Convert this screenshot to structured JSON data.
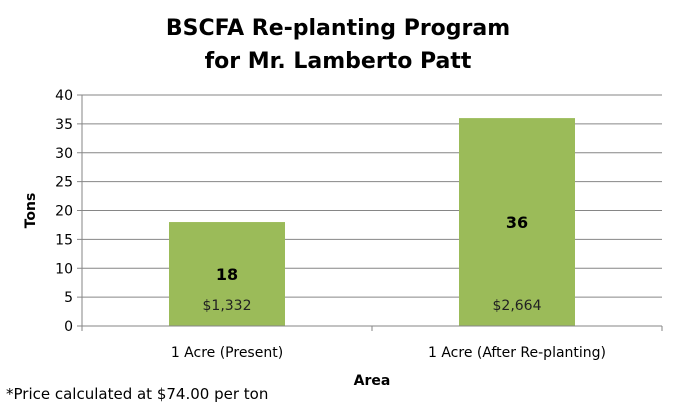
{
  "chart_data": {
    "type": "bar",
    "title_line1": "BSCFA Re-planting Program",
    "title_line2": "for Mr. Lamberto Patt",
    "categories": [
      "1 Acre (Present)",
      "1 Acre (After Re-planting)"
    ],
    "values": [
      18,
      36
    ],
    "data_labels": [
      "18",
      "36"
    ],
    "price_labels": [
      "$1,332",
      "$2,664"
    ],
    "xlabel": "Area",
    "ylabel": "Tons",
    "ylim": [
      0,
      40
    ],
    "yticks": [
      0,
      5,
      10,
      15,
      20,
      25,
      30,
      35,
      40
    ],
    "grid": true,
    "legend": "none",
    "bar_color": "#9BBB59"
  },
  "footnote": "*Price calculated at $74.00 per ton"
}
